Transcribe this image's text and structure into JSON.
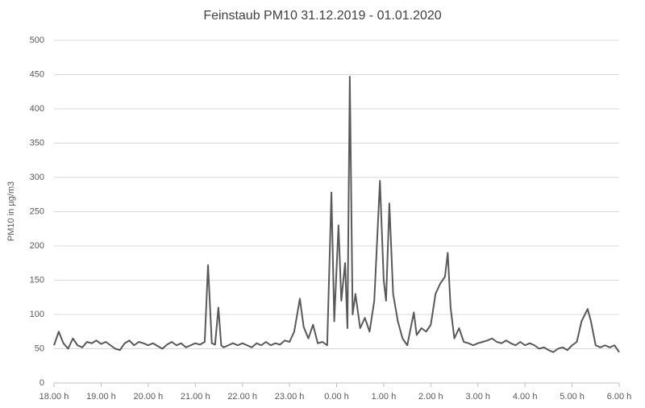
{
  "chart_data": {
    "type": "line",
    "title": "Feinstaub PM10 31.12.2019 - 01.01.2020",
    "ylabel": "PM10 in µg/m3",
    "x": [
      18.0,
      18.1,
      18.2,
      18.3,
      18.4,
      18.5,
      18.6,
      18.7,
      18.8,
      18.9,
      19.0,
      19.1,
      19.2,
      19.3,
      19.4,
      19.5,
      19.6,
      19.7,
      19.8,
      19.9,
      20.0,
      20.1,
      20.2,
      20.3,
      20.4,
      20.5,
      20.6,
      20.7,
      20.8,
      20.9,
      21.0,
      21.1,
      21.2,
      21.27,
      21.35,
      21.42,
      21.49,
      21.55,
      21.6,
      21.7,
      21.8,
      21.9,
      22.0,
      22.1,
      22.2,
      22.3,
      22.4,
      22.5,
      22.6,
      22.7,
      22.8,
      22.9,
      23.0,
      23.1,
      23.22,
      23.3,
      23.4,
      23.5,
      23.6,
      23.7,
      23.8,
      23.89,
      23.95,
      24.04,
      24.1,
      24.18,
      24.23,
      24.28,
      24.34,
      24.4,
      24.5,
      24.6,
      24.7,
      24.8,
      24.92,
      25.0,
      25.05,
      25.12,
      25.2,
      25.3,
      25.4,
      25.5,
      25.64,
      25.7,
      25.8,
      25.9,
      26.0,
      26.1,
      26.2,
      26.3,
      26.36,
      26.42,
      26.5,
      26.6,
      26.7,
      26.8,
      26.9,
      27.0,
      27.1,
      27.2,
      27.3,
      27.4,
      27.5,
      27.6,
      27.7,
      27.8,
      27.9,
      28.0,
      28.1,
      28.2,
      28.3,
      28.4,
      28.5,
      28.6,
      28.7,
      28.8,
      28.9,
      29.0,
      29.1,
      29.2,
      29.33,
      29.4,
      29.5,
      29.6,
      29.7,
      29.8,
      29.9,
      30.0
    ],
    "series": [
      {
        "name": "PM10",
        "color": "#595959",
        "values": [
          55,
          75,
          58,
          50,
          65,
          55,
          52,
          60,
          58,
          62,
          57,
          60,
          55,
          50,
          48,
          58,
          62,
          55,
          60,
          58,
          55,
          58,
          54,
          50,
          56,
          60,
          55,
          58,
          52,
          55,
          58,
          56,
          60,
          172,
          58,
          56,
          110,
          55,
          52,
          55,
          58,
          55,
          58,
          55,
          52,
          58,
          55,
          60,
          55,
          58,
          56,
          62,
          60,
          75,
          123,
          82,
          65,
          85,
          58,
          60,
          55,
          278,
          90,
          230,
          120,
          175,
          80,
          447,
          100,
          130,
          80,
          95,
          75,
          120,
          295,
          150,
          120,
          262,
          130,
          90,
          65,
          55,
          103,
          70,
          80,
          75,
          85,
          130,
          145,
          155,
          190,
          110,
          65,
          80,
          60,
          58,
          55,
          58,
          60,
          62,
          65,
          60,
          58,
          62,
          58,
          55,
          60,
          55,
          58,
          55,
          50,
          52,
          48,
          45,
          50,
          52,
          48,
          55,
          60,
          90,
          108,
          90,
          55,
          52,
          55,
          52,
          55,
          45
        ]
      }
    ],
    "xlim": [
      18,
      30
    ],
    "xticks": [
      {
        "value": 18,
        "label": "18.00 h"
      },
      {
        "value": 19,
        "label": "19.00 h"
      },
      {
        "value": 20,
        "label": "20.00 h"
      },
      {
        "value": 21,
        "label": "21.00 h"
      },
      {
        "value": 22,
        "label": "22.00 h"
      },
      {
        "value": 23,
        "label": "23.00 h"
      },
      {
        "value": 24,
        "label": "0.00 h"
      },
      {
        "value": 25,
        "label": "1.00 h"
      },
      {
        "value": 26,
        "label": "2.00 h"
      },
      {
        "value": 27,
        "label": "3.00 h"
      },
      {
        "value": 28,
        "label": "4.00 h"
      },
      {
        "value": 29,
        "label": "5.00 h"
      },
      {
        "value": 30,
        "label": "6.00 h"
      }
    ],
    "ylim": [
      0,
      500
    ],
    "yticks": [
      0,
      50,
      100,
      150,
      200,
      250,
      300,
      350,
      400,
      450,
      500
    ],
    "grid": true
  }
}
